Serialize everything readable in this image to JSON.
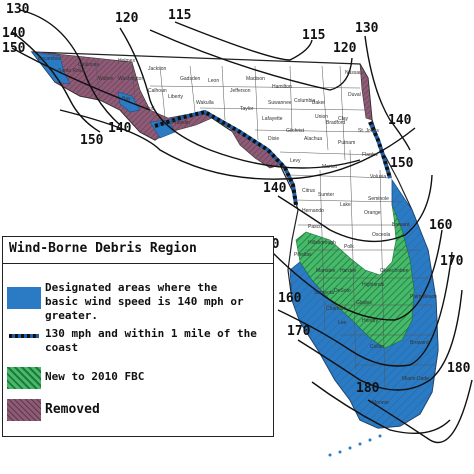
{
  "map": {
    "isotachs": [
      "130",
      "120",
      "115",
      "115",
      "120",
      "130",
      "140",
      "150",
      "140",
      "150",
      "140",
      "150",
      "160",
      "170",
      "150",
      "160",
      "170",
      "180",
      "180"
    ],
    "counties": [
      "Escambia",
      "Santa Rosa",
      "Okaloosa",
      "Walton",
      "Holmes",
      "Washington",
      "Bay",
      "Jackson",
      "Calhoun",
      "Gulf",
      "Liberty",
      "Franklin",
      "Gadsden",
      "Leon",
      "Wakulla",
      "Jefferson",
      "Madison",
      "Taylor",
      "Hamilton",
      "Suwannee",
      "Lafayette",
      "Dixie",
      "Columbia",
      "Baker",
      "Union",
      "Bradford",
      "Nassau",
      "Duval",
      "Clay",
      "St. Johns",
      "Putnam",
      "Alachua",
      "Gilchrist",
      "Levy",
      "Marion",
      "Flagler",
      "Volusia",
      "Citrus",
      "Sumter",
      "Lake",
      "Seminole",
      "Hernando",
      "Pasco",
      "Orange",
      "Polk",
      "Hillsborough",
      "Pinellas",
      "Osceola",
      "Brevard",
      "Manatee",
      "Hardee",
      "Highlands",
      "Okeechobee",
      "Sarasota",
      "DeSoto",
      "Charlotte",
      "Glades",
      "Lee",
      "Hendry",
      "Palm Beach",
      "Collier",
      "Broward",
      "Miami-Dade",
      "Monroe"
    ]
  },
  "legend": {
    "title": "Wind-Borne Debris Region",
    "items": [
      {
        "label_lines": [
          "Designated areas where the",
          "basic wind speed is 140 mph or",
          "greater."
        ],
        "color": "#2b7bc4"
      },
      {
        "label_lines": [
          "130 mph and within 1 mile of the",
          "coast"
        ],
        "color": "#1f5fa8"
      },
      {
        "label_lines": [
          "New to 2010 FBC"
        ],
        "color": "#3cb371"
      },
      {
        "label_lines": [
          "Removed"
        ],
        "color": "#8e5a75"
      }
    ]
  }
}
